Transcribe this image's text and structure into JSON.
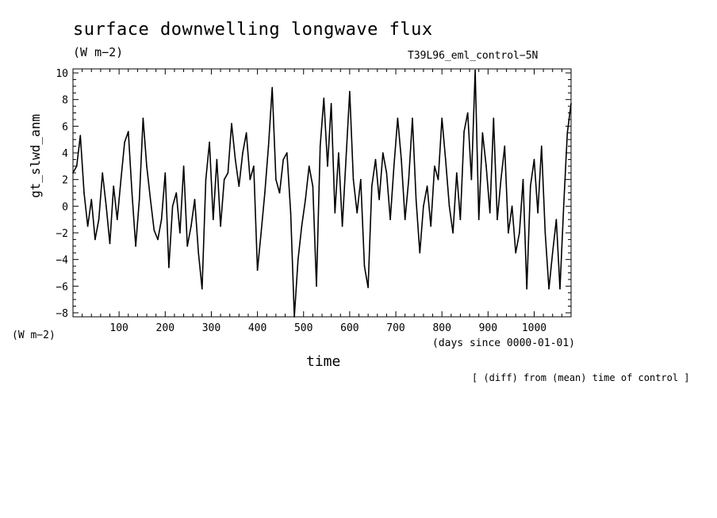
{
  "chart_data": {
    "type": "line",
    "title": "surface downwelling longwave flux",
    "units_top": "(W m−2)",
    "run_name": "T39L96_eml_control−5N",
    "ylabel": "gt_slwd_anm",
    "units_bottom": "(W m−2)",
    "xlabel": "time",
    "xunits": "(days since 0000-01-01)",
    "note": "[ (diff) from (mean) time of control ]",
    "xlim": [
      0,
      1080
    ],
    "ylim": [
      -8.3,
      10.3
    ],
    "x_ticks": [
      100,
      200,
      300,
      400,
      500,
      600,
      700,
      800,
      900,
      1000
    ],
    "y_ticks": [
      -8,
      -6,
      -4,
      -2,
      0,
      2,
      4,
      6,
      8,
      10
    ],
    "x_tick_labels": [
      "100",
      "200",
      "300",
      "400",
      "500",
      "600",
      "700",
      "800",
      "900",
      "1000"
    ],
    "y_tick_labels": [
      "−8",
      "−6",
      "−4",
      "−2",
      "0",
      "2",
      "4",
      "6",
      "8",
      "10"
    ],
    "grid": false,
    "series": [
      {
        "color": "#000000",
        "x": [
          0,
          8,
          16,
          24,
          32,
          40,
          48,
          56,
          64,
          72,
          80,
          88,
          96,
          104,
          112,
          120,
          128,
          136,
          144,
          152,
          160,
          168,
          176,
          184,
          192,
          200,
          208,
          216,
          224,
          232,
          240,
          248,
          256,
          264,
          272,
          280,
          288,
          296,
          304,
          312,
          320,
          328,
          336,
          344,
          352,
          360,
          368,
          376,
          384,
          392,
          400,
          408,
          416,
          424,
          432,
          440,
          448,
          456,
          464,
          472,
          480,
          488,
          496,
          504,
          512,
          520,
          528,
          536,
          544,
          552,
          560,
          568,
          576,
          584,
          592,
          600,
          608,
          616,
          624,
          632,
          640,
          648,
          656,
          664,
          672,
          680,
          688,
          696,
          704,
          712,
          720,
          728,
          736,
          744,
          752,
          760,
          768,
          776,
          784,
          792,
          800,
          808,
          816,
          824,
          832,
          840,
          848,
          856,
          864,
          872,
          880,
          888,
          896,
          904,
          912,
          920,
          928,
          936,
          944,
          952,
          960,
          968,
          976,
          984,
          992,
          1000,
          1008,
          1016,
          1024,
          1032,
          1040,
          1048,
          1056,
          1064,
          1072,
          1080
        ],
        "values": [
          2.5,
          3.0,
          5.3,
          1.0,
          -1.5,
          0.5,
          -2.5,
          -1.0,
          2.5,
          0.0,
          -2.8,
          1.5,
          -1.0,
          2.0,
          4.8,
          5.6,
          1.0,
          -3.0,
          0.5,
          6.6,
          3.0,
          0.5,
          -1.8,
          -2.5,
          -1.0,
          2.5,
          -4.6,
          0.0,
          1.0,
          -2.0,
          3.0,
          -3.0,
          -1.5,
          0.5,
          -3.5,
          -6.2,
          2.0,
          4.8,
          -1.0,
          3.5,
          -1.5,
          2.0,
          2.5,
          6.2,
          3.5,
          1.5,
          4.0,
          5.5,
          2.0,
          3.0,
          -4.8,
          -2.0,
          1.0,
          4.5,
          8.9,
          2.0,
          1.0,
          3.5,
          4.0,
          -0.5,
          -8.3,
          -4.0,
          -1.5,
          0.5,
          3.0,
          1.5,
          -6.0,
          4.5,
          8.1,
          3.0,
          7.7,
          -0.5,
          4.0,
          -1.5,
          3.5,
          8.6,
          2.0,
          -0.5,
          2.0,
          -4.5,
          -6.1,
          1.5,
          3.5,
          0.5,
          4.0,
          2.5,
          -1.0,
          3.0,
          6.6,
          3.5,
          -1.0,
          2.0,
          6.6,
          0.5,
          -3.5,
          0.0,
          1.5,
          -1.5,
          3.0,
          2.0,
          6.6,
          3.5,
          0.0,
          -2.0,
          2.5,
          -1.0,
          5.6,
          7.0,
          2.0,
          10.2,
          -1.0,
          5.5,
          3.0,
          -0.5,
          6.6,
          -1.0,
          2.0,
          4.5,
          -2.0,
          0.0,
          -3.5,
          -2.0,
          2.0,
          -6.2,
          1.5,
          3.5,
          -0.5,
          4.5,
          -2.0,
          -6.2,
          -3.5,
          -1.0,
          -6.2,
          0.0,
          5.5,
          7.7
        ]
      }
    ]
  }
}
